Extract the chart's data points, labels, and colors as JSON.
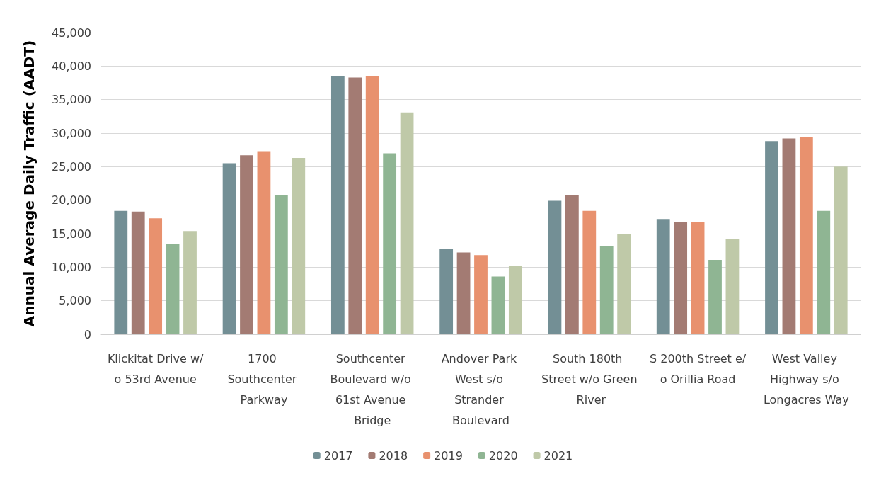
{
  "chart_data": {
    "type": "bar",
    "ylabel": "Annual Average Daily Traffic (AADT)",
    "categories": [
      "Klickitat Drive w/o 53rd Avenue",
      "1700 Southcenter Parkway",
      "Southcenter Boulevard w/o 61st Avenue Bridge",
      "Andover Park West s/o Strander Boulevard",
      "South 180th Street w/o Green River",
      "S 200th Street e/o Orillia Road",
      "West Valley Highway s/o Longacres Way"
    ],
    "series": [
      {
        "name": "2017",
        "color": "#738f95",
        "values": [
          18400,
          25500,
          38500,
          12700,
          19900,
          17200,
          28800
        ]
      },
      {
        "name": "2018",
        "color": "#a37b73",
        "values": [
          18300,
          26700,
          38300,
          12200,
          20700,
          16800,
          29200
        ]
      },
      {
        "name": "2019",
        "color": "#e8916e",
        "values": [
          17300,
          27300,
          38500,
          11800,
          18400,
          16700,
          29400
        ]
      },
      {
        "name": "2020",
        "color": "#8fb593",
        "values": [
          13500,
          20700,
          27000,
          8600,
          13200,
          11100,
          18400
        ]
      },
      {
        "name": "2021",
        "color": "#bfc9a8",
        "values": [
          15400,
          26300,
          33100,
          10200,
          15000,
          14200,
          25000
        ]
      }
    ],
    "ylim": [
      0,
      45000
    ],
    "yticks": [
      0,
      {
        "value": 5000,
        "label": "5,000"
      },
      {
        "value": 10000,
        "label": "10,000"
      },
      {
        "value": 15000,
        "label": "15,000"
      },
      {
        "value": 20000,
        "label": "20,000"
      },
      {
        "value": 25000,
        "label": "25,000"
      },
      {
        "value": 30000,
        "label": "30,000"
      },
      {
        "value": 35000,
        "label": "35,000"
      },
      {
        "value": 40000,
        "label": "40,000"
      },
      {
        "value": 45000,
        "label": "45,000"
      }
    ],
    "grid": "y",
    "legend": "bottom"
  }
}
